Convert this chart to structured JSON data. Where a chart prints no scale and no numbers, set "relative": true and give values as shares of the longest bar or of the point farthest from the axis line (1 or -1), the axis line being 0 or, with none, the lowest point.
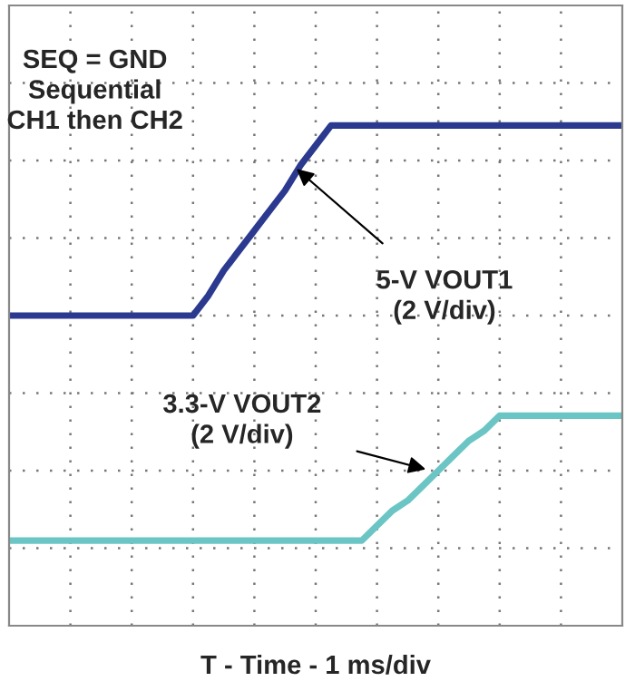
{
  "chart_data": {
    "type": "line",
    "relative": true,
    "xlabel": "T - Time - 1 ms/div",
    "grid": true,
    "line_style": "solid",
    "marker": "none",
    "annotations": [
      "SEQ = GND\nSequential\nCH1 then CH2",
      "5-V VOUT1\n(2 V/div)",
      "3.3-V VOUT2\n(2 V/div)"
    ],
    "categories": [
      null,
      null,
      null,
      null,
      null,
      null,
      null,
      null,
      null,
      null,
      null,
      null,
      null,
      null,
      null,
      null,
      null,
      null,
      null,
      null,
      null,
      null,
      null,
      null,
      null,
      null,
      null,
      null,
      null,
      null,
      null,
      null,
      null,
      null,
      null,
      null,
      null,
      null,
      null,
      null,
      null
    ],
    "series": [
      {
        "color": "#2b3a8f",
        "values": [
          0.62,
          0.62,
          0.62,
          0.62,
          0.62,
          0.62,
          0.62,
          0.62,
          0.62,
          0.62,
          0.62,
          0.62,
          0.62,
          0.66,
          0.71,
          0.75,
          0.79,
          0.83,
          0.87,
          0.92,
          0.96,
          1.0,
          1.0,
          1.0,
          1.0,
          1.0,
          1.0,
          1.0,
          1.0,
          1.0,
          1.0,
          1.0,
          1.0,
          1.0,
          1.0,
          1.0,
          1.0,
          1.0,
          1.0,
          1.0,
          1.0
        ]
      },
      {
        "color": "#6cc5c5",
        "values": [
          0.17,
          0.17,
          0.17,
          0.17,
          0.17,
          0.17,
          0.17,
          0.17,
          0.17,
          0.17,
          0.17,
          0.17,
          0.17,
          0.17,
          0.17,
          0.17,
          0.17,
          0.17,
          0.17,
          0.17,
          0.17,
          0.17,
          0.17,
          0.17,
          0.2,
          0.23,
          0.25,
          0.28,
          0.31,
          0.34,
          0.37,
          0.39,
          0.42,
          0.42,
          0.42,
          0.42,
          0.42,
          0.42,
          0.42,
          0.42,
          0.42
        ]
      }
    ]
  }
}
